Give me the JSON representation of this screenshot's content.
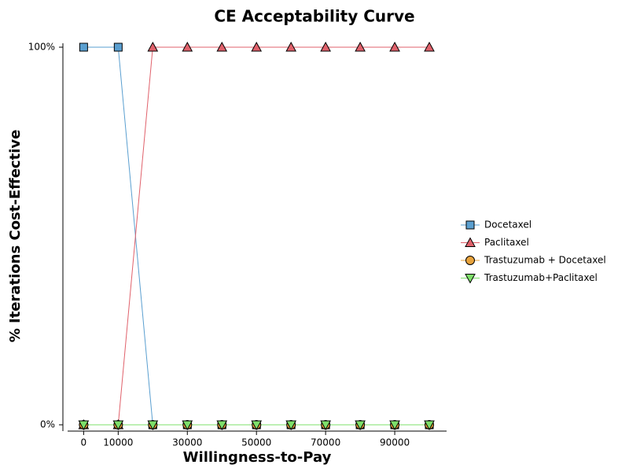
{
  "chart_data": {
    "type": "line",
    "title": "CE Acceptability Curve",
    "x_label": "Willingness-to-Pay",
    "y_label": "% Iterations Cost-Effective",
    "x": [
      0,
      10000,
      20000,
      30000,
      40000,
      50000,
      60000,
      70000,
      80000,
      90000,
      100000
    ],
    "xlim": [
      -6000,
      105000
    ],
    "xticks": [
      0,
      10000,
      30000,
      50000,
      70000,
      90000
    ],
    "ylim": [
      0,
      100
    ],
    "yticks": [
      {
        "value": 0,
        "label": "0%"
      },
      {
        "value": 100,
        "label": "100%"
      }
    ],
    "legend": "right",
    "series": [
      {
        "name": "Docetaxel",
        "color": "#5a9fd0",
        "marker": "square",
        "values": [
          100,
          100,
          0,
          0,
          0,
          0,
          0,
          0,
          0,
          0,
          0
        ]
      },
      {
        "name": "Paclitaxel",
        "color": "#e0616b",
        "marker": "triangle",
        "values": [
          0,
          0,
          100,
          100,
          100,
          100,
          100,
          100,
          100,
          100,
          100
        ]
      },
      {
        "name": "Trastuzumab + Docetaxel",
        "color": "#e8a33c",
        "marker": "circle",
        "values": [
          0,
          0,
          0,
          0,
          0,
          0,
          0,
          0,
          0,
          0,
          0
        ]
      },
      {
        "name": "Trastuzumab+Paclitaxel",
        "color": "#7ee06a",
        "marker": "triangle-down",
        "values": [
          0,
          0,
          0,
          0,
          0,
          0,
          0,
          0,
          0,
          0,
          0
        ]
      }
    ]
  }
}
